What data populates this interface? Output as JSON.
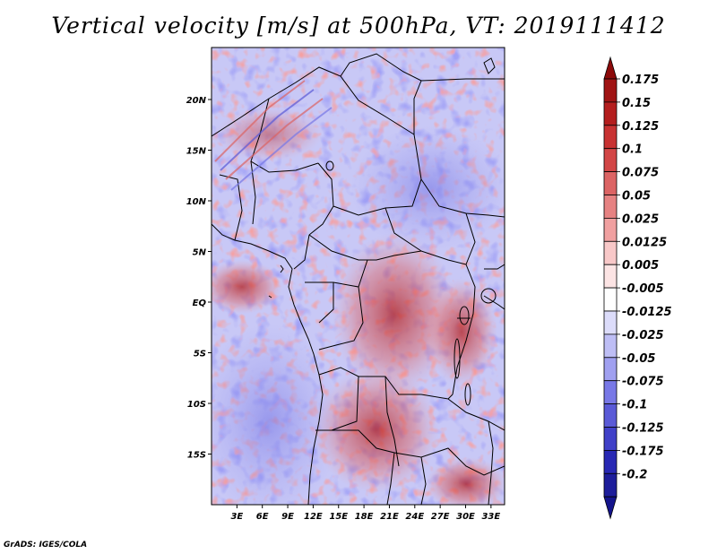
{
  "title": "Vertical velocity [m/s] at 500hPa, VT: 2019111412",
  "credit": "GrADS: IGES/COLA",
  "map": {
    "region": "Central Africa",
    "lon_range_deg": [
      0,
      35
    ],
    "lat_range_deg": [
      -20,
      25
    ],
    "lat_ticks": [
      {
        "label": "20N",
        "value": 20
      },
      {
        "label": "15N",
        "value": 15
      },
      {
        "label": "10N",
        "value": 10
      },
      {
        "label": "5N",
        "value": 5
      },
      {
        "label": "EQ",
        "value": 0
      },
      {
        "label": "5S",
        "value": -5
      },
      {
        "label": "10S",
        "value": -10
      },
      {
        "label": "15S",
        "value": -15
      }
    ],
    "lon_ticks": [
      {
        "label": "3E",
        "value": 3
      },
      {
        "label": "6E",
        "value": 6
      },
      {
        "label": "9E",
        "value": 9
      },
      {
        "label": "12E",
        "value": 12
      },
      {
        "label": "15E",
        "value": 15
      },
      {
        "label": "18E",
        "value": 18
      },
      {
        "label": "21E",
        "value": 21
      },
      {
        "label": "24E",
        "value": 24
      },
      {
        "label": "27E",
        "value": 27
      },
      {
        "label": "30E",
        "value": 30
      },
      {
        "label": "33E",
        "value": 33
      }
    ]
  },
  "colorbar": {
    "levels": [
      {
        "label": "0.175",
        "color": "#a01414"
      },
      {
        "label": "0.15",
        "color": "#b41e1e"
      },
      {
        "label": "0.125",
        "color": "#c83232"
      },
      {
        "label": "0.1",
        "color": "#d24646"
      },
      {
        "label": "0.075",
        "color": "#dc6464"
      },
      {
        "label": "0.05",
        "color": "#e68282"
      },
      {
        "label": "0.025",
        "color": "#f0a0a0"
      },
      {
        "label": "0.0125",
        "color": "#f8c8c8"
      },
      {
        "label": "0.005",
        "color": "#fce4e4"
      },
      {
        "label": "-0.005",
        "color": "#ffffff"
      },
      {
        "label": "-0.0125",
        "color": "#dcdcfa"
      },
      {
        "label": "-0.025",
        "color": "#bebef5"
      },
      {
        "label": "-0.05",
        "color": "#a0a0f0"
      },
      {
        "label": "-0.075",
        "color": "#7878e6"
      },
      {
        "label": "-0.1",
        "color": "#5a5ad7"
      },
      {
        "label": "-0.125",
        "color": "#4040c8"
      },
      {
        "label": "-0.175",
        "color": "#2828b4"
      },
      {
        "label": "-0.2",
        "color": "#1e1e9b"
      }
    ],
    "top_cap_color": "#8c0a0a",
    "bottom_cap_color": "#14148c"
  }
}
